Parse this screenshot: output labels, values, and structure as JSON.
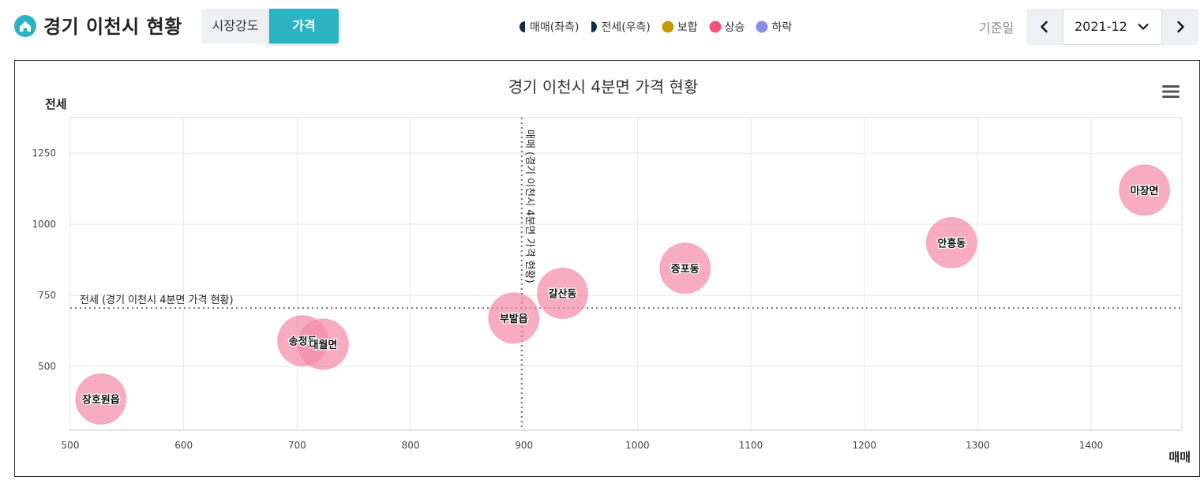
{
  "header": {
    "title": "경기 이천시 현황",
    "tabs": [
      {
        "label": "시장강도",
        "active": false
      },
      {
        "label": "가격",
        "active": true
      }
    ],
    "legend": [
      {
        "label": "매매(좌측)",
        "icon": "left-half-circle-icon",
        "color": "#0f2c4a"
      },
      {
        "label": "전세(우측)",
        "icon": "right-half-circle-icon",
        "color": "#0f2c4a"
      },
      {
        "label": "보합",
        "icon": "dot-icon",
        "color": "#c49a08"
      },
      {
        "label": "상승",
        "icon": "dot-icon",
        "color": "#f0527a"
      },
      {
        "label": "하락",
        "icon": "dot-icon",
        "color": "#8b8ce8"
      }
    ],
    "date_label": "기준일",
    "date_value": "2021-12"
  },
  "colors": {
    "accent": "#2bb3c4",
    "bubble_fill": "#f48ca9",
    "bubble_stroke": "#f26a8f"
  },
  "chart_data": {
    "type": "scatter",
    "title": "경기 이천시 4분면 가격 현황",
    "xlabel": "매매",
    "ylabel": "전세",
    "xlim": [
      500,
      1480
    ],
    "ylim": [
      275,
      1375
    ],
    "xticks": [
      500,
      600,
      700,
      800,
      900,
      1000,
      1100,
      1200,
      1300,
      1400
    ],
    "yticks": [
      500,
      750,
      1000,
      1250
    ],
    "grid": true,
    "reference_lines": [
      {
        "axis": "x",
        "value": 898,
        "label": "매매 (경기 이천시 4분면 가격 현황)"
      },
      {
        "axis": "y",
        "value": 705,
        "label": "전세 (경기 이천시 4분면 가격 현황)"
      }
    ],
    "points": [
      {
        "name": "장호원읍",
        "x": 527,
        "y": 385
      },
      {
        "name": "송정동",
        "x": 705,
        "y": 590
      },
      {
        "name": "대월면",
        "x": 723,
        "y": 578
      },
      {
        "name": "부발읍",
        "x": 891,
        "y": 670
      },
      {
        "name": "갈산동",
        "x": 934,
        "y": 757
      },
      {
        "name": "증포동",
        "x": 1042,
        "y": 845
      },
      {
        "name": "안흥동",
        "x": 1277,
        "y": 935
      },
      {
        "name": "마장면",
        "x": 1447,
        "y": 1120
      }
    ]
  }
}
